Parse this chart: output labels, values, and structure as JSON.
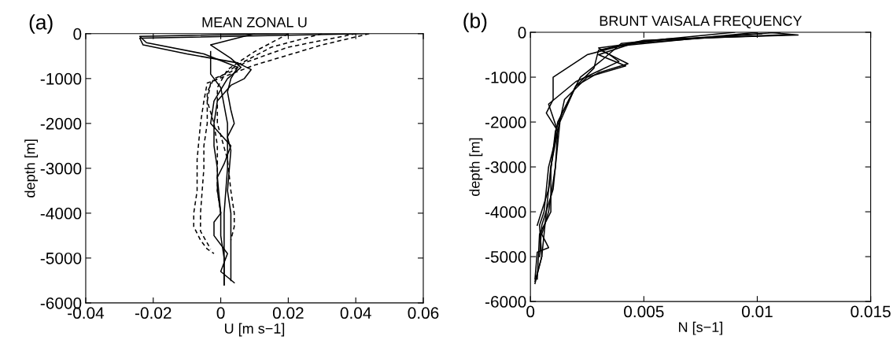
{
  "chart_data": [
    {
      "type": "line",
      "title": "MEAN ZONAL U",
      "xlabel": "U [m s−1]",
      "ylabel": "depth [m]",
      "annotations": [
        "(a)"
      ],
      "xlim": [
        -0.04,
        0.06
      ],
      "xticks": [
        -0.04,
        -0.02,
        0,
        0.02,
        0.04,
        0.06
      ],
      "ylim": [
        -6000,
        0
      ],
      "yticks": [
        -6000,
        -5000,
        -4000,
        -3000,
        -2000,
        -1000,
        0
      ],
      "grid": false,
      "legend": false,
      "series": [
        {
          "color": "#000000",
          "line_style": "solid",
          "x": [
            0.043,
            -0.024,
            -0.023,
            -0.01,
            0.005,
            0.009,
            0.007,
            0.003,
            -0.001,
            -0.002,
            -0.002,
            -0.001,
            -0.001,
            0,
            0,
            0.001,
            0.001
          ],
          "values": [
            0,
            -100,
            -250,
            -450,
            -650,
            -800,
            -1000,
            -1150,
            -1500,
            -2000,
            -2500,
            -3000,
            -3500,
            -4000,
            -4500,
            -5000,
            -5600
          ]
        },
        {
          "color": "#000000",
          "line_style": "solid",
          "x": [
            0.02,
            -0.024,
            -0.022,
            -0.005,
            0.005,
            0.003,
            0.002,
            0.003,
            0.004,
            0.002,
            0.003,
            0.002,
            0.003,
            0.003,
            0.003
          ],
          "values": [
            0,
            -60,
            -200,
            -450,
            -750,
            -1000,
            -1300,
            -1700,
            -2000,
            -2300,
            -2600,
            -3500,
            -4000,
            -5000,
            -5500
          ]
        },
        {
          "color": "#000000",
          "line_style": "solid",
          "x": [
            0.01,
            -0.003,
            0.003,
            0.006,
            0.002,
            -0.002,
            -0.003,
            0.003,
            0.001,
            -0.001,
            0,
            -0.002,
            -0.002,
            0.002,
            0,
            0.004
          ],
          "values": [
            0,
            -250,
            -550,
            -750,
            -1000,
            -1500,
            -2000,
            -2500,
            -2900,
            -3200,
            -4000,
            -4200,
            -4500,
            -4900,
            -5300,
            -5550
          ]
        },
        {
          "color": "#000000",
          "line_style": "solid",
          "x": [
            -0.003,
            -0.003,
            0,
            0.002,
            0.002,
            0.001,
            0.001,
            0.001
          ],
          "values": [
            -400,
            -900,
            -1200,
            -2000,
            -3000,
            -4000,
            -5000,
            -5600
          ]
        },
        {
          "color": "#000000",
          "line_style": "dashed",
          "x": [
            0.044,
            0.03,
            0.01,
            0.003,
            -0.004,
            -0.005,
            -0.006,
            -0.007,
            -0.007,
            -0.008,
            -0.008,
            -0.006,
            -0.004,
            -0.002
          ],
          "values": [
            0,
            -250,
            -700,
            -900,
            -1100,
            -1500,
            -2000,
            -2800,
            -3500,
            -4000,
            -4300,
            -4600,
            -4800,
            -4900
          ]
        },
        {
          "color": "#000000",
          "line_style": "dashed",
          "x": [
            0.04,
            0.02,
            0.007,
            0.003,
            -0.002,
            -0.004,
            -0.004,
            -0.005,
            -0.005,
            -0.006,
            -0.006,
            -0.003
          ],
          "values": [
            0,
            -300,
            -650,
            -850,
            -1000,
            -1300,
            -2000,
            -2500,
            -3000,
            -4000,
            -4400,
            -4800
          ]
        },
        {
          "color": "#000000",
          "line_style": "dashed",
          "x": [
            0.03,
            0.015,
            0.005,
            0,
            -0.003,
            -0.004,
            -0.002,
            -0.001,
            -0.001,
            -0.001,
            0
          ],
          "values": [
            0,
            -300,
            -700,
            -950,
            -1100,
            -1500,
            -2000,
            -2500,
            -3000,
            -3500,
            -4000
          ]
        },
        {
          "color": "#000000",
          "line_style": "dashed",
          "x": [
            0.02,
            0.01,
            0.002,
            -0.001,
            -0.001,
            0.002,
            0.003,
            0.004,
            0.004,
            0.003
          ],
          "values": [
            0,
            -400,
            -800,
            -1200,
            -2000,
            -2800,
            -3500,
            -4000,
            -4300,
            -4600
          ]
        }
      ]
    },
    {
      "type": "line",
      "title": "BRUNT VAISALA FREQUENCY",
      "xlabel": "N [s−1]",
      "ylabel": "depth [m]",
      "annotations": [
        "(b)"
      ],
      "xlim": [
        0,
        0.015
      ],
      "xticks": [
        0,
        0.005,
        0.01,
        0.015
      ],
      "ylim": [
        -6000,
        0
      ],
      "yticks": [
        -6000,
        -5000,
        -4000,
        -3000,
        -2000,
        -1000,
        0
      ],
      "grid": false,
      "legend": false,
      "series": [
        {
          "color": "#000000",
          "line_style": "solid",
          "x": [
            0.0105,
            0.0118,
            0.006,
            0.003,
            0.0033,
            0.0043,
            0.003,
            0.002,
            0.0012,
            0.0009,
            0.0007,
            0.0005,
            0.0002
          ],
          "values": [
            0,
            -60,
            -150,
            -350,
            -450,
            -700,
            -900,
            -1200,
            -2000,
            -3000,
            -4000,
            -5000,
            -5600
          ]
        },
        {
          "color": "#000000",
          "line_style": "solid",
          "x": [
            0.011,
            0.005,
            0.0031,
            0.0035,
            0.0039,
            0.002,
            0.0008,
            0.0012,
            0.0009,
            0.0009,
            0.0004,
            0.0003
          ],
          "values": [
            0,
            -200,
            -400,
            -500,
            -650,
            -1100,
            -1600,
            -2200,
            -3000,
            -4000,
            -4500,
            -5500
          ]
        },
        {
          "color": "#000000",
          "line_style": "solid",
          "x": [
            0.01,
            0.004,
            0.0025,
            0.001,
            0.001,
            0.0007,
            0.0012,
            0.0011,
            0.0008,
            0.0005,
            0.0008,
            0.0003,
            0.0002
          ],
          "values": [
            0,
            -300,
            -500,
            -1000,
            -1500,
            -1800,
            -2200,
            -3000,
            -4000,
            -4500,
            -4800,
            -4900,
            -5500
          ]
        },
        {
          "color": "#000000",
          "line_style": "solid",
          "x": [
            0.0115,
            0.005,
            0.003,
            0.0028,
            0.002,
            0.0013,
            0.0012,
            0.001,
            0.0005,
            0.0004
          ],
          "values": [
            -50,
            -180,
            -400,
            -800,
            -1200,
            -2000,
            -2500,
            -3500,
            -4300,
            -5000
          ]
        },
        {
          "color": "#000000",
          "line_style": "solid",
          "x": [
            0.0102,
            0.0045,
            0.003,
            0.0042,
            0.0025,
            0.0015,
            0.0012,
            0.0008,
            0.0006,
            0.0004,
            0.0005,
            0.0002
          ],
          "values": [
            -30,
            -250,
            -500,
            -750,
            -1000,
            -1500,
            -2200,
            -3000,
            -4000,
            -4300,
            -5000,
            -5550
          ]
        },
        {
          "color": "#000000",
          "line_style": "solid",
          "x": [
            0.009,
            0.004,
            0.0032,
            0.0022,
            0.0014,
            0.0011,
            0.0008,
            0.0003
          ],
          "values": [
            0,
            -250,
            -600,
            -1000,
            -1800,
            -2200,
            -3500,
            -4300
          ]
        }
      ]
    }
  ]
}
